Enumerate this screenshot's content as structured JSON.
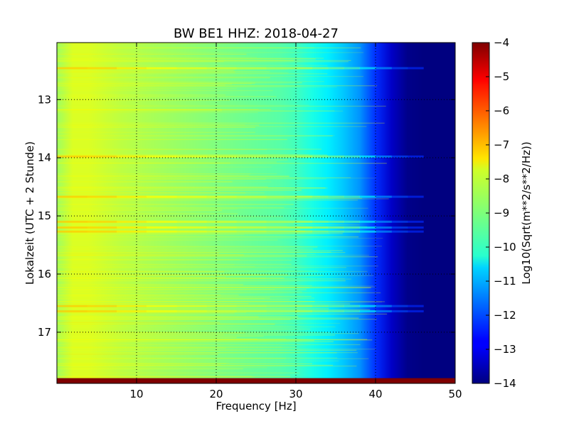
{
  "chart_data": {
    "type": "heatmap",
    "title": "BW BE1 HHZ: 2018-04-27",
    "xlabel": "Frequency [Hz]",
    "ylabel": "Lokalzeit (UTC + 2 Stunde)",
    "xlim": [
      0,
      50
    ],
    "ylim": [
      17.88,
      12.02
    ],
    "x_ticks": [
      10,
      20,
      30,
      40,
      50
    ],
    "y_ticks": [
      13,
      14,
      15,
      16,
      17
    ],
    "grid": true,
    "colormap": "jet",
    "colorbar": {
      "label": "Log10(Sqrt(m**2/s**2/Hz))",
      "range": [
        -14,
        -4
      ],
      "ticks": [
        -4,
        -5,
        -6,
        -7,
        -8,
        -9,
        -10,
        -11,
        -12,
        -13,
        -14
      ]
    },
    "spectrum_profile": {
      "frequency_hz": [
        0,
        2,
        4,
        8,
        12,
        16,
        20,
        24,
        28,
        30,
        32,
        34,
        36,
        38,
        40,
        42,
        44,
        46,
        50
      ],
      "log_amplitude": [
        -8.7,
        -8.1,
        -8.1,
        -8.4,
        -8.6,
        -8.8,
        -9.0,
        -9.2,
        -9.4,
        -9.6,
        -10.0,
        -10.4,
        -10.8,
        -11.3,
        -12.3,
        -13.3,
        -13.9,
        -14.0,
        -14.0
      ]
    },
    "high_noise_times_h": [
      12.46,
      13.98,
      14.67,
      15.1,
      15.2,
      15.27,
      16.55,
      16.64
    ],
    "saturated_band_time_h": [
      17.79,
      17.88
    ]
  }
}
